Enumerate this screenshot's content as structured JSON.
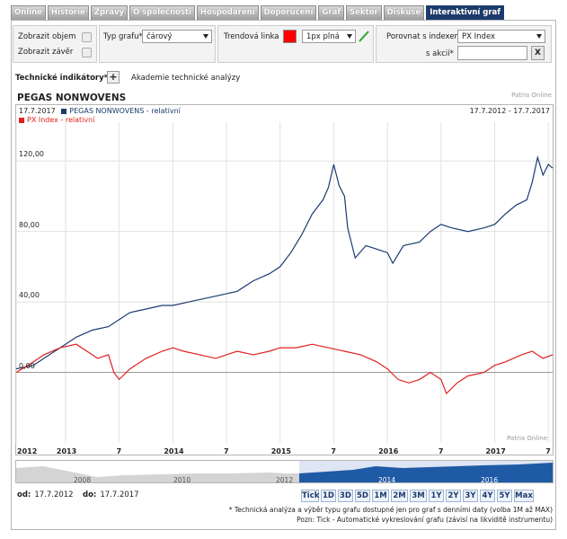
{
  "tabs": [
    "Online",
    "Historie",
    "Zprávy",
    "O společnosti",
    "Hospodaření",
    "Doporučení",
    "Graf",
    "Sektor",
    "Diskuse",
    "Interaktivní graf"
  ],
  "active_tab": "Interaktivní graf",
  "controls": {
    "show_volume": "Zobrazit objem",
    "show_close": "Zobrazit závěr",
    "chart_type_label": "Typ grafu*",
    "chart_type_value": "čárový",
    "trend_line_label": "Trendová linka",
    "trend_color": "#ff0000",
    "trend_style": "1px plná",
    "compare_index_label": "Porovnat s indexem*",
    "compare_index_value": "PX Index",
    "compare_stock_label": "s akcií*",
    "clear_label": "X"
  },
  "tech": {
    "label": "Technické indikátory*:",
    "plus": "+",
    "academy": "Akademie technické analýzy"
  },
  "chart_title": "PEGAS NONWOVENS",
  "source_top": "Patria Online",
  "source_bottom": "Patria Online",
  "navigator": {
    "years": [
      "2008",
      "2010",
      "2012",
      "2014",
      "2016"
    ]
  },
  "period": {
    "from_label": "od:",
    "from": "17.7.2012",
    "to_label": "do:",
    "to": "17.7.2017"
  },
  "period_buttons": [
    "Tick",
    "1D",
    "3D",
    "5D",
    "1M",
    "2M",
    "3M",
    "1Y",
    "2Y",
    "3Y",
    "4Y",
    "5Y",
    "Max"
  ],
  "notes": [
    "* Technická analýza a výběr typu grafu dostupné jen pro graf s denními daty (volba 1M až MAX)",
    "Pozn: Tick - Automatické vykreslování grafu (závisí na likviditě instrumentu)"
  ],
  "colors": {
    "series1": "#1b3b6f",
    "series2": "#e02020",
    "tab_active": "#1b3b6f",
    "nav_fill": "#1f5aa6"
  },
  "chart_data": {
    "type": "line",
    "date_range_label": "17.7.2012 - 17.7.2017",
    "legend_date": "17.7.2017",
    "ylim": [
      -40,
      140
    ],
    "yticks": [
      0,
      40,
      80,
      120
    ],
    "ytick_labels": [
      "0,00",
      "40,00",
      "80,00",
      "120,00"
    ],
    "xlim": [
      2012.54,
      2017.54
    ],
    "xticks": [
      {
        "t": 2012.54,
        "label": "2012"
      },
      {
        "t": 2013.0,
        "label": "2013"
      },
      {
        "t": 2013.5,
        "label": "7"
      },
      {
        "t": 2014.0,
        "label": "2014"
      },
      {
        "t": 2014.5,
        "label": "7"
      },
      {
        "t": 2015.0,
        "label": "2015"
      },
      {
        "t": 2015.5,
        "label": "7"
      },
      {
        "t": 2016.0,
        "label": "2016"
      },
      {
        "t": 2016.5,
        "label": "7"
      },
      {
        "t": 2017.0,
        "label": "2017"
      },
      {
        "t": 2017.5,
        "label": "7"
      }
    ],
    "series": [
      {
        "name": "PEGAS NONWOVENS - relativní",
        "color": "#1b3b6f",
        "points": [
          [
            2012.54,
            2
          ],
          [
            2012.7,
            4
          ],
          [
            2012.85,
            10
          ],
          [
            2013.0,
            16
          ],
          [
            2013.1,
            20
          ],
          [
            2013.25,
            24
          ],
          [
            2013.4,
            26
          ],
          [
            2013.5,
            30
          ],
          [
            2013.6,
            34
          ],
          [
            2013.75,
            36
          ],
          [
            2013.9,
            38
          ],
          [
            2014.0,
            38
          ],
          [
            2014.15,
            40
          ],
          [
            2014.3,
            42
          ],
          [
            2014.45,
            44
          ],
          [
            2014.6,
            46
          ],
          [
            2014.75,
            52
          ],
          [
            2014.9,
            56
          ],
          [
            2015.0,
            60
          ],
          [
            2015.1,
            68
          ],
          [
            2015.2,
            78
          ],
          [
            2015.3,
            90
          ],
          [
            2015.4,
            98
          ],
          [
            2015.45,
            105
          ],
          [
            2015.5,
            118
          ],
          [
            2015.55,
            106
          ],
          [
            2015.6,
            100
          ],
          [
            2015.63,
            82
          ],
          [
            2015.7,
            65
          ],
          [
            2015.8,
            72
          ],
          [
            2015.9,
            70
          ],
          [
            2016.0,
            68
          ],
          [
            2016.05,
            62
          ],
          [
            2016.15,
            72
          ],
          [
            2016.3,
            74
          ],
          [
            2016.4,
            80
          ],
          [
            2016.5,
            84
          ],
          [
            2016.6,
            82
          ],
          [
            2016.75,
            80
          ],
          [
            2016.9,
            82
          ],
          [
            2017.0,
            84
          ],
          [
            2017.1,
            90
          ],
          [
            2017.2,
            95
          ],
          [
            2017.3,
            98
          ],
          [
            2017.35,
            108
          ],
          [
            2017.4,
            122
          ],
          [
            2017.45,
            112
          ],
          [
            2017.5,
            118
          ],
          [
            2017.54,
            116
          ]
        ]
      },
      {
        "name": "PX Index - relativní",
        "color": "#e02020",
        "points": [
          [
            2012.54,
            0
          ],
          [
            2012.65,
            4
          ],
          [
            2012.8,
            10
          ],
          [
            2012.95,
            14
          ],
          [
            2013.1,
            16
          ],
          [
            2013.2,
            12
          ],
          [
            2013.3,
            8
          ],
          [
            2013.4,
            10
          ],
          [
            2013.45,
            0
          ],
          [
            2013.5,
            -4
          ],
          [
            2013.6,
            2
          ],
          [
            2013.75,
            8
          ],
          [
            2013.9,
            12
          ],
          [
            2014.0,
            14
          ],
          [
            2014.1,
            12
          ],
          [
            2014.25,
            10
          ],
          [
            2014.4,
            8
          ],
          [
            2014.5,
            10
          ],
          [
            2014.6,
            12
          ],
          [
            2014.75,
            10
          ],
          [
            2014.9,
            12
          ],
          [
            2015.0,
            14
          ],
          [
            2015.15,
            14
          ],
          [
            2015.3,
            16
          ],
          [
            2015.45,
            14
          ],
          [
            2015.6,
            12
          ],
          [
            2015.75,
            10
          ],
          [
            2015.9,
            6
          ],
          [
            2016.0,
            2
          ],
          [
            2016.1,
            -4
          ],
          [
            2016.2,
            -6
          ],
          [
            2016.3,
            -4
          ],
          [
            2016.4,
            0
          ],
          [
            2016.5,
            -4
          ],
          [
            2016.55,
            -12
          ],
          [
            2016.65,
            -6
          ],
          [
            2016.75,
            -2
          ],
          [
            2016.9,
            0
          ],
          [
            2017.0,
            4
          ],
          [
            2017.1,
            6
          ],
          [
            2017.25,
            10
          ],
          [
            2017.35,
            12
          ],
          [
            2017.45,
            8
          ],
          [
            2017.54,
            10
          ]
        ]
      }
    ]
  }
}
